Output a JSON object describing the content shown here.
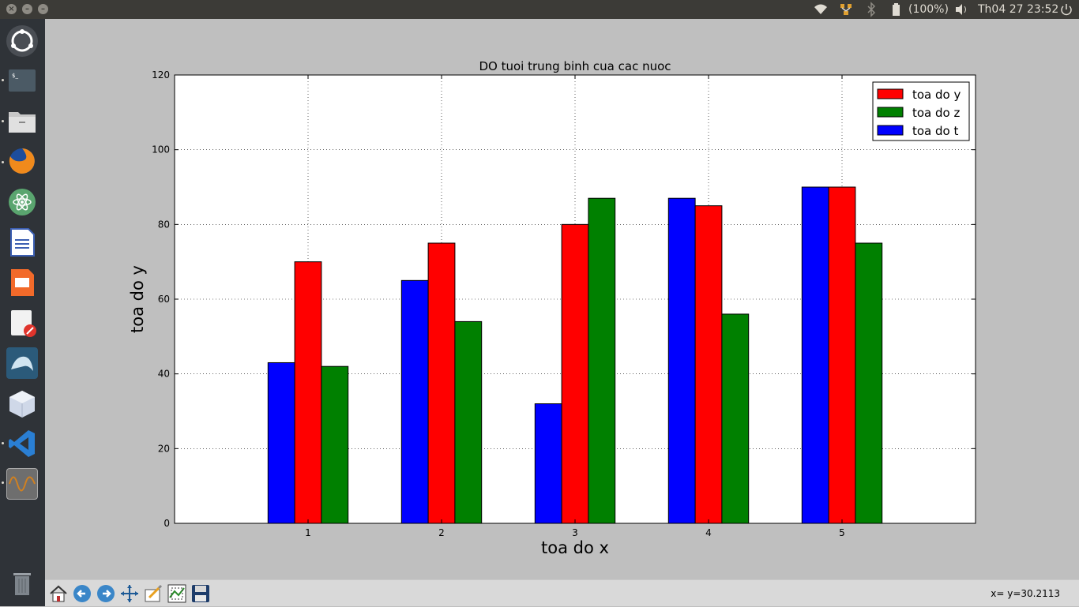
{
  "topbar": {
    "battery": "(100%)",
    "clock": "Th04 27 23:52"
  },
  "launcher": {
    "items": [
      {
        "name": "dash-home-icon"
      },
      {
        "name": "terminal-icon"
      },
      {
        "name": "files-icon"
      },
      {
        "name": "firefox-icon"
      },
      {
        "name": "atom-icon"
      },
      {
        "name": "libreoffice-writer-icon"
      },
      {
        "name": "libreoffice-impress-icon"
      },
      {
        "name": "text-editor-icon"
      },
      {
        "name": "mysql-workbench-icon"
      },
      {
        "name": "cube-app-icon"
      },
      {
        "name": "vscode-icon"
      },
      {
        "name": "matplotlib-figure-icon"
      }
    ]
  },
  "toolbar": {
    "coords": "x= y=30.2113",
    "buttons": [
      "home-icon",
      "back-icon",
      "forward-icon",
      "pan-icon",
      "configure-subplots-icon",
      "zoom-icon",
      "save-icon"
    ]
  },
  "chart_data": {
    "type": "bar",
    "title": "DO tuoi trung binh cua cac nuoc",
    "xlabel": "toa do x",
    "ylabel": "toa do y",
    "categories": [
      "1",
      "2",
      "3",
      "4",
      "5"
    ],
    "x": [
      1,
      2,
      3,
      4,
      5
    ],
    "xlim": [
      0,
      6
    ],
    "ylim": [
      0,
      120
    ],
    "yticks": [
      0,
      20,
      40,
      60,
      80,
      100,
      120
    ],
    "grid": true,
    "legend_position": "top-right",
    "series": [
      {
        "name": "toa do t",
        "color": "#0000ff",
        "values": [
          43,
          65,
          32,
          87,
          90
        ]
      },
      {
        "name": "toa do y",
        "color": "#ff0000",
        "values": [
          70,
          75,
          80,
          85,
          90
        ]
      },
      {
        "name": "toa do z",
        "color": "#008000",
        "values": [
          42,
          54,
          87,
          56,
          75
        ]
      }
    ],
    "legend_order": [
      "toa do y",
      "toa do z",
      "toa do t"
    ]
  }
}
